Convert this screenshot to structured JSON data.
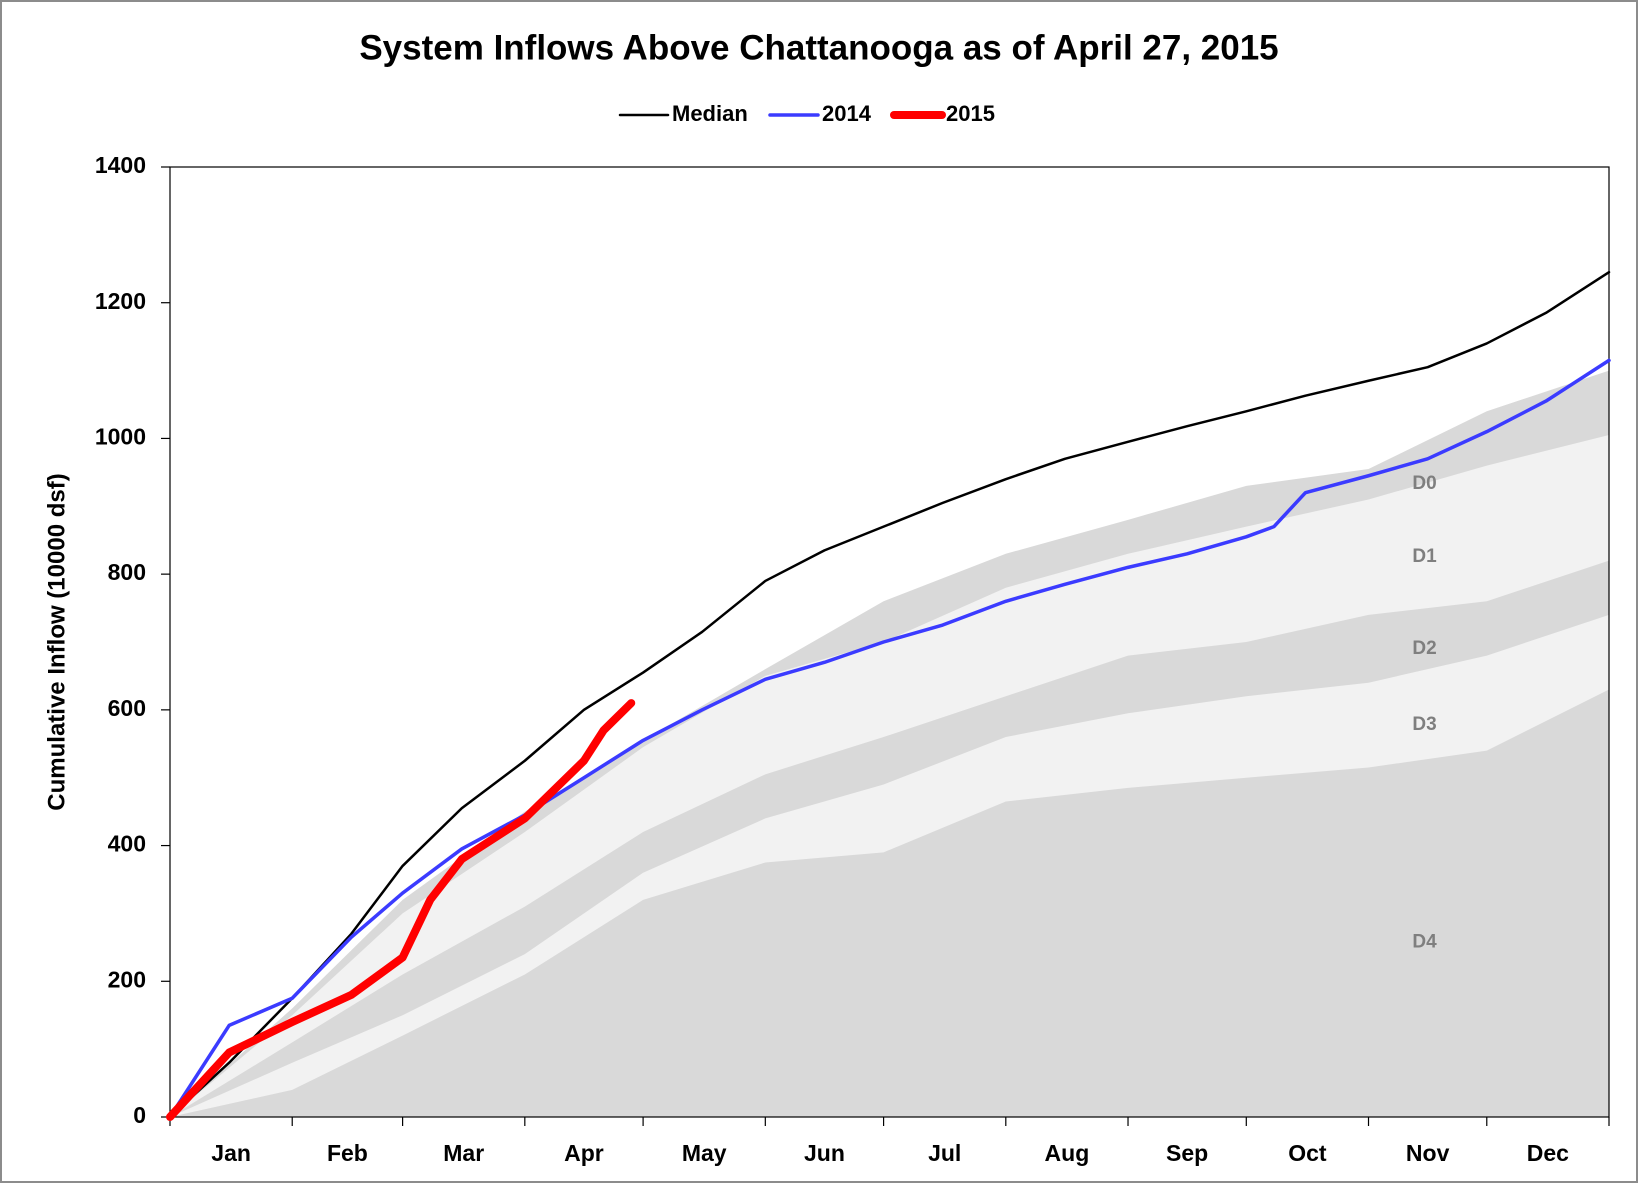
{
  "chart_data": {
    "type": "line",
    "title": "System Inflows Above Chattanooga as of April 27, 2015",
    "y_label": "Cumulative Inflow (10000 dsf)",
    "xlim": [
      0,
      365
    ],
    "xticks": [
      {
        "value": 0,
        "label": "Jan"
      },
      {
        "value": 31,
        "label": "Feb"
      },
      {
        "value": 59,
        "label": "Mar"
      },
      {
        "value": 90,
        "label": "Apr"
      },
      {
        "value": 120,
        "label": "May"
      },
      {
        "value": 151,
        "label": "Jun"
      },
      {
        "value": 181,
        "label": "Jul"
      },
      {
        "value": 212,
        "label": "Aug"
      },
      {
        "value": 243,
        "label": "Sep"
      },
      {
        "value": 273,
        "label": "Oct"
      },
      {
        "value": 304,
        "label": "Nov"
      },
      {
        "value": 334,
        "label": "Dec"
      }
    ],
    "ylim": [
      0,
      1400
    ],
    "yticks": [
      0,
      200,
      400,
      600,
      800,
      1000,
      1200,
      1400
    ],
    "legend": "top",
    "bands": [
      {
        "name": "D0",
        "color": "#d9d9d9",
        "x": [
          0,
          31,
          59,
          90,
          120,
          151,
          181,
          212,
          243,
          273,
          304,
          334,
          365
        ],
        "values": [
          0,
          160,
          320,
          450,
          555,
          660,
          760,
          830,
          880,
          930,
          955,
          1040,
          1100
        ]
      },
      {
        "name": "D1",
        "color": "#f2f2f2",
        "x": [
          0,
          31,
          59,
          90,
          120,
          151,
          181,
          212,
          243,
          273,
          304,
          334,
          365
        ],
        "values": [
          0,
          150,
          300,
          420,
          545,
          650,
          700,
          780,
          830,
          870,
          910,
          960,
          1005
        ]
      },
      {
        "name": "D2",
        "color": "#d9d9d9",
        "x": [
          0,
          31,
          59,
          90,
          120,
          151,
          181,
          212,
          243,
          273,
          304,
          334,
          365
        ],
        "values": [
          0,
          110,
          210,
          310,
          420,
          505,
          560,
          620,
          680,
          700,
          740,
          760,
          820
        ]
      },
      {
        "name": "D3",
        "color": "#f2f2f2",
        "x": [
          0,
          31,
          59,
          90,
          120,
          151,
          181,
          212,
          243,
          273,
          304,
          334,
          365
        ],
        "values": [
          0,
          80,
          150,
          240,
          360,
          440,
          490,
          560,
          595,
          620,
          640,
          680,
          740
        ]
      },
      {
        "name": "D4",
        "color": "#d9d9d9",
        "x": [
          0,
          31,
          59,
          90,
          120,
          151,
          181,
          212,
          243,
          273,
          304,
          334,
          365
        ],
        "values": [
          0,
          40,
          120,
          210,
          320,
          375,
          390,
          465,
          485,
          500,
          515,
          540,
          630
        ]
      }
    ],
    "series": [
      {
        "name": "Median",
        "color": "#000000",
        "line_width": 2.5,
        "x": [
          0,
          15,
          31,
          46,
          59,
          74,
          90,
          105,
          120,
          135,
          151,
          166,
          181,
          196,
          212,
          227,
          243,
          258,
          273,
          288,
          304,
          319,
          334,
          349,
          365
        ],
        "values": [
          0,
          80,
          175,
          270,
          370,
          455,
          525,
          600,
          655,
          715,
          790,
          835,
          870,
          905,
          940,
          970,
          995,
          1018,
          1040,
          1063,
          1085,
          1105,
          1140,
          1185,
          1245
        ]
      },
      {
        "name": "2014",
        "color": "#3b3bff",
        "line_width": 3.5,
        "x": [
          0,
          15,
          31,
          46,
          59,
          74,
          90,
          105,
          120,
          135,
          151,
          166,
          181,
          196,
          212,
          227,
          243,
          258,
          273,
          280,
          288,
          304,
          319,
          334,
          349,
          365
        ],
        "values": [
          0,
          135,
          175,
          265,
          330,
          395,
          445,
          500,
          555,
          600,
          645,
          670,
          700,
          725,
          760,
          785,
          810,
          830,
          855,
          870,
          920,
          945,
          970,
          1010,
          1055,
          1115
        ]
      },
      {
        "name": "2015",
        "color": "#ff0000",
        "line_width": 8,
        "x": [
          0,
          15,
          31,
          46,
          59,
          66,
          74,
          90,
          105,
          110,
          117
        ],
        "values": [
          0,
          95,
          140,
          180,
          235,
          320,
          380,
          440,
          525,
          570,
          610
        ]
      }
    ]
  }
}
